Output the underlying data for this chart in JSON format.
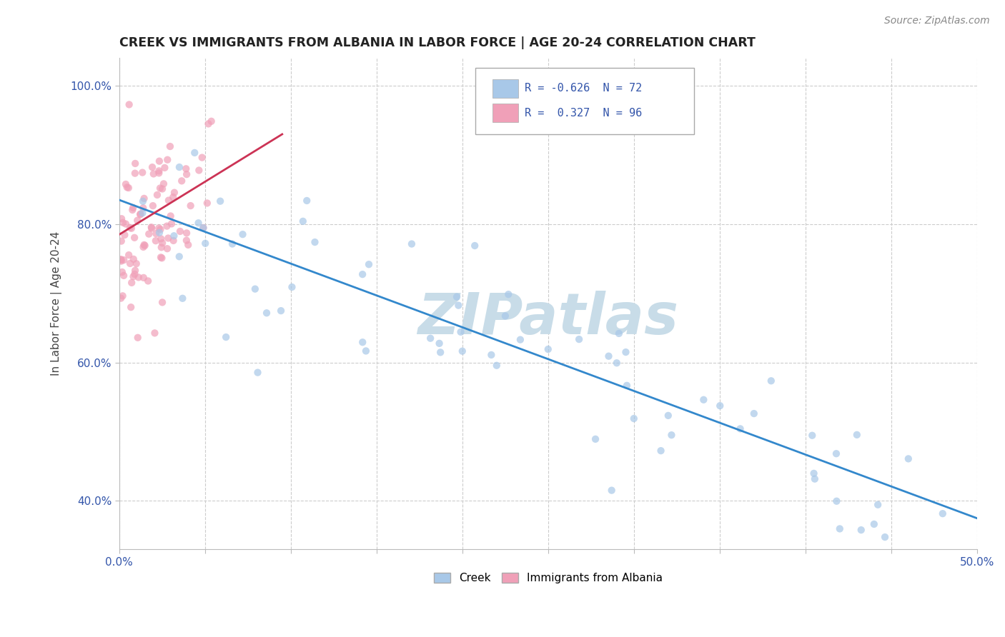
{
  "title": "CREEK VS IMMIGRANTS FROM ALBANIA IN LABOR FORCE | AGE 20-24 CORRELATION CHART",
  "source": "Source: ZipAtlas.com",
  "ylabel_label": "In Labor Force | Age 20-24",
  "xlim": [
    0.0,
    0.5
  ],
  "ylim": [
    0.33,
    1.04
  ],
  "xtick_positions": [
    0.0,
    0.05,
    0.1,
    0.15,
    0.2,
    0.25,
    0.3,
    0.35,
    0.4,
    0.45,
    0.5
  ],
  "ytick_positions": [
    0.4,
    0.6,
    0.8,
    1.0
  ],
  "ytick_labels": [
    "40.0%",
    "60.0%",
    "80.0%",
    "100.0%"
  ],
  "blue_color": "#a8c8e8",
  "pink_color": "#f0a0b8",
  "trend_blue": "#3388cc",
  "trend_pink": "#cc3355",
  "watermark_color": "#c8dce8",
  "legend_R_blue": "-0.626",
  "legend_N_blue": "72",
  "legend_R_pink": "0.327",
  "legend_N_pink": "96",
  "blue_trendline_x": [
    0.0,
    0.5
  ],
  "blue_trendline_y": [
    0.835,
    0.375
  ],
  "pink_trendline_x": [
    0.0,
    0.095
  ],
  "pink_trendline_y": [
    0.785,
    0.93
  ]
}
